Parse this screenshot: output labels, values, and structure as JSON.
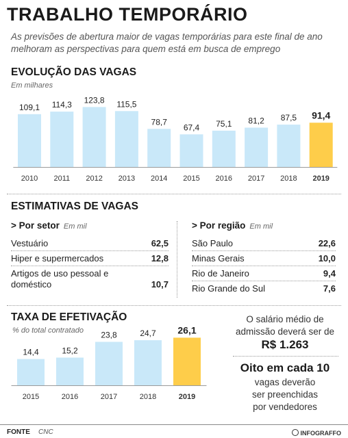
{
  "title": "TRABALHO TEMPORÁRIO",
  "subtitle": "As previsões de abertura maior de vagas temporárias para este final de ano melhoram as perspectivas para quem está em busca de emprego",
  "colors": {
    "bar": "#c9e8f9",
    "highlight": "#fecd4a",
    "text": "#222222"
  },
  "chart_data": [
    {
      "type": "bar",
      "title": "EVOLUÇÃO DAS VAGAS",
      "subtitle": "Em milhares",
      "categories": [
        "2010",
        "2011",
        "2012",
        "2013",
        "2014",
        "2015",
        "2016",
        "2017",
        "2018",
        "2019"
      ],
      "values": [
        109.1,
        114.3,
        123.8,
        115.5,
        78.7,
        67.4,
        75.1,
        81.2,
        87.5,
        91.4
      ],
      "labels": [
        "109,1",
        "114,3",
        "123,8",
        "115,5",
        "78,7",
        "67,4",
        "75,1",
        "81,2",
        "87,5",
        "91,4"
      ],
      "highlight": "2019",
      "ylim": [
        0,
        130
      ]
    },
    {
      "type": "bar",
      "title": "TAXA DE EFETIVAÇÃO",
      "subtitle": "% do total contratado",
      "categories": [
        "2015",
        "2016",
        "2017",
        "2018",
        "2019"
      ],
      "values": [
        14.4,
        15.2,
        23.8,
        24.7,
        26.1
      ],
      "labels": [
        "14,4",
        "15,2",
        "23,8",
        "24,7",
        "26,1"
      ],
      "highlight": "2019",
      "ylim": [
        0,
        27
      ]
    }
  ],
  "estimativas": {
    "title": "ESTIMATIVAS DE VAGAS",
    "setor": {
      "heading": "> Por setor",
      "unit": "Em mil",
      "rows": [
        {
          "label": "Vestuário",
          "value": "62,5"
        },
        {
          "label": "Hiper e supermercados",
          "value": "12,8"
        },
        {
          "label": "Artigos de uso pessoal e doméstico",
          "value": "10,7"
        }
      ]
    },
    "regiao": {
      "heading": "> Por região",
      "unit": "Em mil",
      "rows": [
        {
          "label": "São Paulo",
          "value": "22,6"
        },
        {
          "label": "Minas Gerais",
          "value": "10,0"
        },
        {
          "label": "Rio de Janeiro",
          "value": "9,4"
        },
        {
          "label": "Rio Grande do Sul",
          "value": "7,6"
        }
      ]
    }
  },
  "salario": {
    "text": "O salário médio de admissão deverá ser de",
    "value": "R$ 1.263"
  },
  "oito": {
    "headline": "Oito em cada 10",
    "text": "vagas deverão ser preenchidas por vendedores"
  },
  "footer": {
    "fonte_label": "FONTE",
    "fonte_value": "CNC",
    "brand": "INFOGRAFFO"
  }
}
